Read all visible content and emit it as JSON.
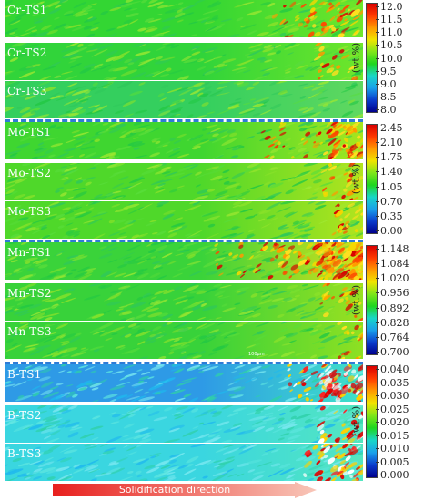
{
  "strips": [
    {
      "label": "Cr-TS1",
      "base": "#33d633",
      "hot": [
        [
          330,
          0.6,
          1.0
        ],
        [
          385,
          0.8,
          1.3
        ]
      ],
      "mid": "#6fe62a",
      "intensity": 0.45
    },
    {
      "label": "Cr-TS2",
      "base": "#31d43a",
      "hot": [
        [
          370,
          0.5,
          1.0
        ]
      ],
      "mid": "#6fe62a",
      "intensity": 0.3
    },
    {
      "label": "Cr-TS3",
      "base": "#34cf5e",
      "hot": [],
      "mid": "#5fd860",
      "intensity": 0.15
    },
    {
      "label": "Mo-TS1",
      "base": "#3fd630",
      "hot": [
        [
          300,
          0.3,
          0.9
        ],
        [
          380,
          0.4,
          1.3
        ]
      ],
      "mid": "#a6e61e",
      "intensity": 0.75
    },
    {
      "label": "Mo-TS2",
      "base": "#4fd82a",
      "hot": [
        [
          375,
          0.4,
          1.0
        ]
      ],
      "mid": "#b2e41e",
      "intensity": 0.45
    },
    {
      "label": "Mo-TS3",
      "base": "#4fd82a",
      "hot": [
        [
          380,
          0.3,
          0.9
        ]
      ],
      "mid": "#b2e41e",
      "intensity": 0.4
    },
    {
      "label": "Mn-TS1",
      "base": "#3ad33a",
      "hot": [
        [
          260,
          0.5,
          1.0
        ],
        [
          330,
          0.6,
          1.3
        ],
        [
          385,
          0.7,
          1.3
        ]
      ],
      "mid": "#d6e01a",
      "intensity": 0.95
    },
    {
      "label": "Mn-TS2",
      "base": "#38d23a",
      "hot": [
        [
          378,
          0.5,
          1.0
        ]
      ],
      "mid": "#9ae020",
      "intensity": 0.35
    },
    {
      "label": "Mn-TS3",
      "base": "#38d23a",
      "hot": [
        [
          382,
          0.3,
          0.8
        ]
      ],
      "mid": "#8ee022",
      "intensity": 0.25
    },
    {
      "label": "B-TS1",
      "base": "#2e9ae6",
      "hot": [
        [
          345,
          0.6,
          1.1
        ],
        [
          380,
          0.6,
          1.3
        ]
      ],
      "mid": "#3fe2c8",
      "intensity": 0.8
    },
    {
      "label": "B-TS2",
      "base": "#3ad6e0",
      "hot": [
        [
          375,
          0.5,
          1.2
        ]
      ],
      "mid": "#54e6c0",
      "intensity": 0.4
    },
    {
      "label": "B-TS3",
      "base": "#3ad6e0",
      "hot": [
        [
          360,
          0.5,
          1.2
        ],
        [
          385,
          0.6,
          1.2
        ]
      ],
      "mid": "#54e6c0",
      "intensity": 0.45
    }
  ],
  "colorbars": [
    {
      "element": "Cr",
      "unit": "(wt.%)",
      "ticks": [
        "12.0",
        "11.5",
        "11.0",
        "10.5",
        "10.0",
        "9.5",
        "9.0",
        "8.5",
        "8.0"
      ]
    },
    {
      "element": "Mo",
      "unit": "(wt.%)",
      "ticks": [
        "2.45",
        "2.10",
        "1.75",
        "1.40",
        "1.05",
        "0.70",
        "0.35",
        "0.00"
      ]
    },
    {
      "element": "Mn",
      "unit": "(wt.%)",
      "ticks": [
        "1.148",
        "1.084",
        "1.020",
        "0.956",
        "0.892",
        "0.828",
        "0.764",
        "0.700"
      ]
    },
    {
      "element": "B",
      "unit": "(wt.%)",
      "ticks": [
        "0.040",
        "0.035",
        "0.030",
        "0.025",
        "0.020",
        "0.015",
        "0.010",
        "0.005",
        "0.000"
      ]
    }
  ],
  "colorbar_gradient": [
    "#d90000",
    "#ff3a00",
    "#ff9a00",
    "#f0e400",
    "#7fe61a",
    "#1ed61e",
    "#19d6c8",
    "#1aa0ea",
    "#0a3ccc",
    "#00008c"
  ],
  "arrow": {
    "label": "Solidification direction",
    "color_start": "#e8201e",
    "color_end": "#f8c6b8"
  },
  "scale_text": "100μm",
  "divider_color": "#2e7bd6"
}
